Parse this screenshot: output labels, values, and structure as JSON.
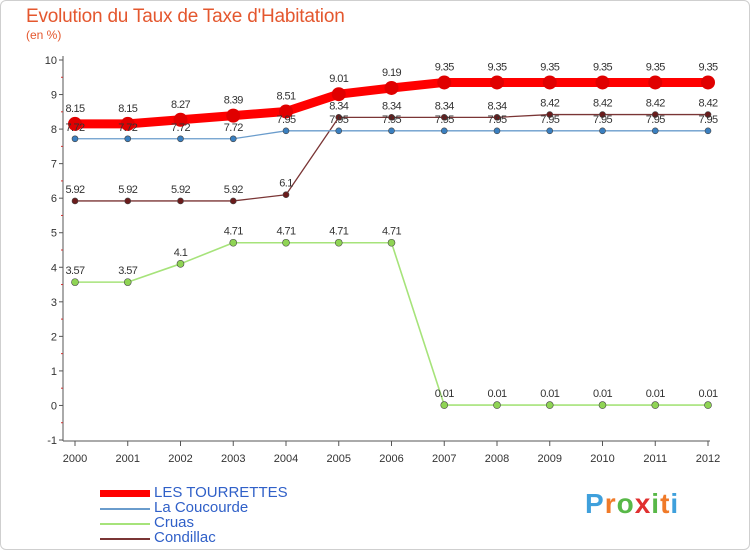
{
  "title": "Evolution du Taux de Taxe d'Habitation",
  "subtitle": "(en %)",
  "brand": "Proxiti",
  "chart_data": {
    "type": "line",
    "x": [
      "2000",
      "2001",
      "2002",
      "2003",
      "2004",
      "2005",
      "2006",
      "2007",
      "2008",
      "2009",
      "2010",
      "2011",
      "2012"
    ],
    "ylim": [
      -1,
      10
    ],
    "yticks": [
      -1,
      0,
      1,
      2,
      3,
      4,
      5,
      6,
      7,
      8,
      9,
      10
    ],
    "grid": false,
    "legend_position": "bottom-left",
    "series": [
      {
        "name": "LES TOURRETTES",
        "color": "#ff0000",
        "marker": "#e00000",
        "width": 9,
        "radius": 7,
        "values": [
          8.15,
          8.15,
          8.27,
          8.39,
          8.51,
          9.01,
          9.19,
          9.35,
          9.35,
          9.35,
          9.35,
          9.35,
          9.35
        ],
        "labels": [
          "8.15",
          "8.15",
          "8.27",
          "8.39",
          "8.51",
          "9.01",
          "9.19",
          "9.35",
          "9.35",
          "9.35",
          "9.35",
          "9.35",
          "9.35"
        ]
      },
      {
        "name": "La Coucourde",
        "color": "#6a9ccc",
        "marker": "#3a7fc0",
        "width": 1.3,
        "radius": 3,
        "values": [
          7.72,
          7.72,
          7.72,
          7.72,
          7.95,
          7.95,
          7.95,
          7.95,
          7.95,
          7.95,
          7.95,
          7.95,
          7.95
        ],
        "labels": [
          "7.72",
          "7.72",
          "7.72",
          "7.72",
          "7.95",
          "7.95",
          "7.95",
          "7.95",
          "7.95",
          "7.95",
          "7.95",
          "7.95",
          "7.95"
        ]
      },
      {
        "name": "Cruas",
        "color": "#a6e37a",
        "marker": "#8fd454",
        "width": 1.6,
        "radius": 3.5,
        "values": [
          3.57,
          3.57,
          4.1,
          4.71,
          4.71,
          4.71,
          4.71,
          0.01,
          0.01,
          0.01,
          0.01,
          0.01,
          0.01
        ],
        "labels": [
          "3.57",
          "3.57",
          "4.1",
          "4.71",
          "4.71",
          "4.71",
          "4.71",
          "0.01",
          "0.01",
          "0.01",
          "0.01",
          "0.01",
          "0.01"
        ]
      },
      {
        "name": "Condillac",
        "color": "#7a3535",
        "marker": "#6b1c1c",
        "width": 1.3,
        "radius": 3,
        "values": [
          5.92,
          5.92,
          5.92,
          5.92,
          6.1,
          8.34,
          8.34,
          8.34,
          8.34,
          8.42,
          8.42,
          8.42,
          8.42
        ],
        "labels": [
          "5.92",
          "5.92",
          "5.92",
          "5.92",
          "6.1",
          "8.34",
          "8.34",
          "8.34",
          "8.34",
          "8.42",
          "8.42",
          "8.42",
          "8.42"
        ]
      }
    ]
  }
}
